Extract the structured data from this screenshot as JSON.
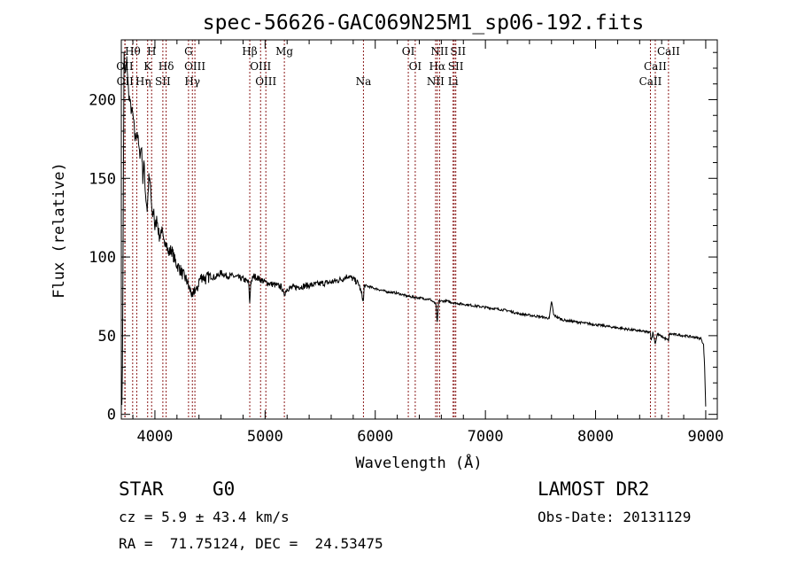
{
  "chart_data": {
    "type": "line",
    "title": "spec-56626-GAC069N25M1_sp06-192.fits",
    "xlabel": "Wavelength (Å)",
    "ylabel": "Flux (relative)",
    "xlim": [
      3695,
      9105
    ],
    "ylim": [
      -3,
      238
    ],
    "xticks": [
      4000,
      5000,
      6000,
      7000,
      8000,
      9000
    ],
    "yticks": [
      0,
      50,
      100,
      150,
      200
    ],
    "grid": false,
    "series": [
      {
        "name": "spectrum",
        "points": [
          [
            3700,
            10
          ],
          [
            3705,
            25
          ],
          [
            3712,
            120
          ],
          [
            3720,
            230
          ],
          [
            3730,
            215
          ],
          [
            3745,
            225
          ],
          [
            3760,
            205
          ],
          [
            3780,
            195
          ],
          [
            3800,
            190
          ],
          [
            3820,
            175
          ],
          [
            3840,
            180
          ],
          [
            3860,
            165
          ],
          [
            3880,
            170
          ],
          [
            3890,
            150
          ],
          [
            3900,
            160
          ],
          [
            3915,
            140
          ],
          [
            3930,
            130
          ],
          [
            3945,
            150
          ],
          [
            3960,
            145
          ],
          [
            3975,
            125
          ],
          [
            3990,
            130
          ],
          [
            4000,
            118
          ],
          [
            4020,
            125
          ],
          [
            4040,
            112
          ],
          [
            4060,
            118
          ],
          [
            4080,
            108
          ],
          [
            4100,
            112
          ],
          [
            4120,
            102
          ],
          [
            4150,
            105
          ],
          [
            4180,
            98
          ],
          [
            4200,
            95
          ],
          [
            4230,
            92
          ],
          [
            4260,
            88
          ],
          [
            4290,
            85
          ],
          [
            4310,
            80
          ],
          [
            4330,
            78
          ],
          [
            4340,
            72
          ],
          [
            4360,
            80
          ],
          [
            4380,
            78
          ],
          [
            4400,
            85
          ],
          [
            4430,
            88
          ],
          [
            4460,
            86
          ],
          [
            4500,
            88
          ],
          [
            4550,
            87
          ],
          [
            4600,
            90
          ],
          [
            4650,
            88
          ],
          [
            4700,
            88
          ],
          [
            4750,
            87
          ],
          [
            4800,
            86
          ],
          [
            4850,
            84
          ],
          [
            4861,
            70
          ],
          [
            4870,
            84
          ],
          [
            4900,
            88
          ],
          [
            4950,
            86
          ],
          [
            5000,
            84
          ],
          [
            5050,
            83
          ],
          [
            5100,
            82
          ],
          [
            5150,
            81
          ],
          [
            5170,
            76
          ],
          [
            5200,
            80
          ],
          [
            5300,
            81
          ],
          [
            5400,
            82
          ],
          [
            5500,
            83
          ],
          [
            5600,
            84
          ],
          [
            5700,
            86
          ],
          [
            5750,
            88
          ],
          [
            5800,
            86
          ],
          [
            5850,
            83
          ],
          [
            5893,
            72
          ],
          [
            5900,
            82
          ],
          [
            6000,
            80
          ],
          [
            6100,
            78
          ],
          [
            6200,
            77
          ],
          [
            6300,
            75
          ],
          [
            6400,
            74
          ],
          [
            6500,
            73
          ],
          [
            6550,
            70
          ],
          [
            6563,
            58
          ],
          [
            6575,
            72
          ],
          [
            6650,
            72
          ],
          [
            6700,
            71
          ],
          [
            6800,
            70
          ],
          [
            6900,
            69
          ],
          [
            7000,
            68
          ],
          [
            7100,
            67
          ],
          [
            7200,
            66
          ],
          [
            7300,
            64
          ],
          [
            7400,
            63
          ],
          [
            7500,
            62
          ],
          [
            7580,
            61
          ],
          [
            7600,
            72
          ],
          [
            7620,
            63
          ],
          [
            7700,
            60
          ],
          [
            7800,
            59
          ],
          [
            7900,
            58
          ],
          [
            8000,
            57
          ],
          [
            8100,
            56
          ],
          [
            8200,
            55
          ],
          [
            8300,
            54
          ],
          [
            8400,
            53
          ],
          [
            8498,
            52
          ],
          [
            8505,
            47
          ],
          [
            8520,
            52
          ],
          [
            8542,
            45
          ],
          [
            8560,
            51
          ],
          [
            8662,
            47
          ],
          [
            8670,
            51
          ],
          [
            8700,
            51
          ],
          [
            8800,
            50
          ],
          [
            8900,
            49
          ],
          [
            8960,
            48
          ],
          [
            8980,
            44
          ],
          [
            8990,
            30
          ],
          [
            9000,
            5
          ]
        ]
      }
    ],
    "line_markers": [
      {
        "label": "Hθ",
        "wavelength": 3798,
        "row": 1
      },
      {
        "label": "H",
        "wavelength": 3970,
        "row": 1
      },
      {
        "label": "G",
        "wavelength": 4305,
        "row": 1
      },
      {
        "label": "Hβ",
        "wavelength": 4861,
        "row": 1
      },
      {
        "label": "Mg",
        "wavelength": 5175,
        "row": 1
      },
      {
        "label": "OI",
        "wavelength": 6300,
        "row": 1
      },
      {
        "label": "NII",
        "wavelength": 6584,
        "row": 1
      },
      {
        "label": "SII",
        "wavelength": 6717,
        "row": 1
      },
      {
        "label": "CaII",
        "wavelength": 8662,
        "row": 1
      },
      {
        "label": "OII",
        "wavelength": 3727,
        "row": 2
      },
      {
        "label": "K",
        "wavelength": 3934,
        "row": 2
      },
      {
        "label": "Hδ",
        "wavelength": 4102,
        "row": 2
      },
      {
        "label": "OIII",
        "wavelength": 4363,
        "row": 2
      },
      {
        "label": "OIII",
        "wavelength": 4959,
        "row": 2
      },
      {
        "label": "OI",
        "wavelength": 6363,
        "row": 2
      },
      {
        "label": "Hα",
        "wavelength": 6563,
        "row": 2
      },
      {
        "label": "SII",
        "wavelength": 6731,
        "row": 2
      },
      {
        "label": "CaII",
        "wavelength": 8542,
        "row": 2
      },
      {
        "label": "OII",
        "wavelength": 3729,
        "row": 3
      },
      {
        "label": "Hη",
        "wavelength": 3835,
        "row": 3
      },
      {
        "label": "SII",
        "wavelength": 4072,
        "row": 3
      },
      {
        "label": "Hγ",
        "wavelength": 4340,
        "row": 3
      },
      {
        "label": "OIII",
        "wavelength": 5007,
        "row": 3
      },
      {
        "label": "Na",
        "wavelength": 5893,
        "row": 3
      },
      {
        "label": "NII",
        "wavelength": 6548,
        "row": 3
      },
      {
        "label": "Li",
        "wavelength": 6707,
        "row": 3
      },
      {
        "label": "CaII",
        "wavelength": 8498,
        "row": 3
      }
    ],
    "colors": {
      "spectrum": "#000000",
      "marker": "#8b1a1a"
    }
  },
  "info": {
    "object_class": "STAR",
    "subclass": "G0",
    "survey": "LAMOST DR2",
    "redshift": "cz = 5.9 ± 43.4 km/s",
    "obs_date": "Obs-Date: 20131129",
    "coords": "RA =  71.75124, DEC =  24.53475"
  }
}
